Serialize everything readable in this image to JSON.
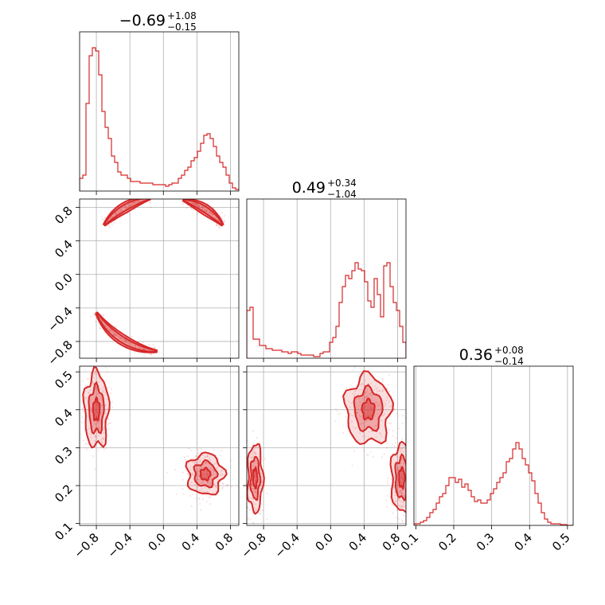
{
  "chart_data": {
    "type": "corner",
    "color": "#d62728",
    "titles": [
      {
        "main": "−0.69",
        "sup": "+1.08",
        "sub": "−0.15"
      },
      {
        "main": "0.49",
        "sup": "+0.34",
        "sub": "−1.04"
      },
      {
        "main": "0.36",
        "sup": "+0.08",
        "sub": "−0.14"
      }
    ],
    "params": [
      {
        "range": [
          -1.0,
          0.9
        ],
        "ticks": [
          -0.8,
          -0.4,
          0.0,
          0.4,
          0.8
        ],
        "tick_labels": [
          "−0.8",
          "−0.4",
          "0.0",
          "0.4",
          "0.8"
        ]
      },
      {
        "range": [
          -1.0,
          0.9
        ],
        "ticks": [
          -0.8,
          -0.4,
          0.0,
          0.4,
          0.8
        ],
        "tick_labels": [
          "−0.8",
          "−0.4",
          "0.0",
          "0.4",
          "0.8"
        ]
      },
      {
        "range": [
          0.095,
          0.515
        ],
        "ticks": [
          0.1,
          0.2,
          0.3,
          0.4,
          0.5
        ],
        "tick_labels": [
          "0.1",
          "0.2",
          "0.3",
          "0.4",
          "0.5"
        ]
      }
    ],
    "hist1d": [
      [
        0.08,
        0.1,
        0.55,
        0.85,
        0.9,
        0.88,
        0.73,
        0.5,
        0.4,
        0.33,
        0.22,
        0.18,
        0.12,
        0.1,
        0.1,
        0.08,
        0.06,
        0.06,
        0.06,
        0.05,
        0.05,
        0.05,
        0.05,
        0.04,
        0.04,
        0.04,
        0.04,
        0.03,
        0.04,
        0.05,
        0.05,
        0.08,
        0.1,
        0.13,
        0.15,
        0.19,
        0.21,
        0.25,
        0.3,
        0.35,
        0.36,
        0.33,
        0.28,
        0.22,
        0.18,
        0.15,
        0.1,
        0.05,
        0.02,
        0.01
      ],
      [
        0.3,
        0.32,
        0.12,
        0.12,
        0.08,
        0.08,
        0.06,
        0.06,
        0.05,
        0.05,
        0.05,
        0.04,
        0.04,
        0.03,
        0.04,
        0.04,
        0.03,
        0.02,
        0.02,
        0.02,
        0.02,
        0.01,
        0.01,
        0.03,
        0.04,
        0.04,
        0.1,
        0.13,
        0.2,
        0.35,
        0.45,
        0.52,
        0.5,
        0.55,
        0.6,
        0.56,
        0.55,
        0.48,
        0.36,
        0.32,
        0.5,
        0.4,
        0.26,
        0.58,
        0.6,
        0.45,
        0.35,
        0.3,
        0.2,
        0.1
      ],
      [
        0.01,
        0.01,
        0.02,
        0.03,
        0.05,
        0.08,
        0.1,
        0.14,
        0.18,
        0.2,
        0.25,
        0.3,
        0.3,
        0.27,
        0.29,
        0.24,
        0.26,
        0.22,
        0.18,
        0.15,
        0.16,
        0.14,
        0.14,
        0.16,
        0.2,
        0.23,
        0.27,
        0.3,
        0.33,
        0.4,
        0.42,
        0.48,
        0.52,
        0.48,
        0.42,
        0.38,
        0.33,
        0.28,
        0.2,
        0.14,
        0.08,
        0.04,
        0.02,
        0.01,
        0.01,
        0.01,
        0.005,
        0.005,
        0.0,
        0.0
      ]
    ],
    "hist2d_modes": {
      "p2_vs_p1": [
        {
          "type": "arc",
          "center": [
            0,
            0
          ],
          "radius": 0.92,
          "from_deg": 100,
          "to_deg": 140
        },
        {
          "type": "arc",
          "center": [
            0,
            0
          ],
          "radius": 0.92,
          "from_deg": 210,
          "to_deg": 265
        },
        {
          "type": "arc",
          "center": [
            0,
            0
          ],
          "radius": 0.92,
          "from_deg": 40,
          "to_deg": 75
        }
      ],
      "p3_vs_p1": [
        {
          "center": [
            -0.8,
            0.4
          ],
          "spread": [
            0.08,
            0.055
          ]
        },
        {
          "center": [
            0.5,
            0.23
          ],
          "spread": [
            0.12,
            0.03
          ]
        }
      ],
      "p3_vs_p2": [
        {
          "center": [
            0.45,
            0.4
          ],
          "spread": [
            0.15,
            0.05
          ]
        },
        {
          "center": [
            0.85,
            0.22
          ],
          "spread": [
            0.07,
            0.05
          ]
        },
        {
          "center": [
            -0.9,
            0.22
          ],
          "spread": [
            0.05,
            0.05
          ]
        }
      ]
    }
  }
}
